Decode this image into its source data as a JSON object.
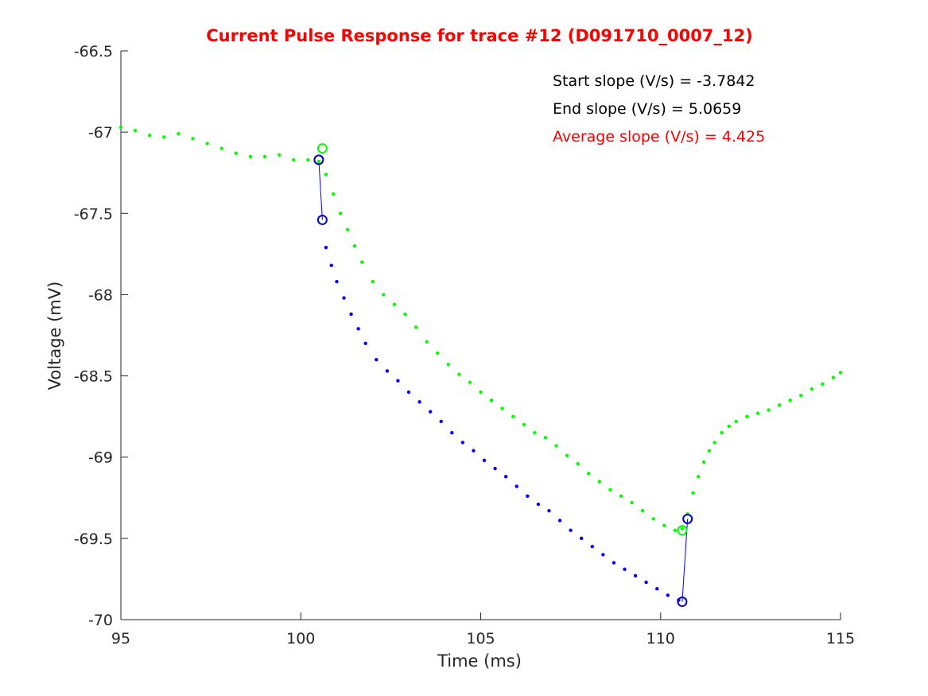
{
  "chart_data": {
    "type": "scatter",
    "title": "Current Pulse Response for trace #12 (D091710_0007_12)",
    "xlabel": "Time (ms)",
    "ylabel": "Voltage (mV)",
    "xlim": [
      95,
      115
    ],
    "ylim": [
      -70,
      -66.5
    ],
    "xticks": [
      95,
      100,
      105,
      110,
      115
    ],
    "yticks": [
      -66.5,
      -67,
      -67.5,
      -68,
      -68.5,
      -69,
      -69.5,
      -70
    ],
    "xtick_labels": [
      "95",
      "100",
      "105",
      "110",
      "115"
    ],
    "ytick_labels": [
      "-66.5",
      "-67",
      "-67.5",
      "-68",
      "-68.5",
      "-69",
      "-69.5",
      "-70"
    ],
    "grid": false,
    "annotations": [
      {
        "text": "Start slope (V/s) = -3.7842",
        "color": "#000000"
      },
      {
        "text": "End slope (V/s) = 5.0659",
        "color": "#000000"
      },
      {
        "text": "Average slope (V/s) = 4.425",
        "color": "#ff0000"
      }
    ],
    "colors": {
      "green_series": "#00ff00",
      "blue_series": "#0000ff",
      "blue_marker": "#0000cc",
      "title": "#ff0000"
    },
    "series": [
      {
        "color": "#00ff00",
        "style": "dots",
        "x": [
          95.0,
          95.4,
          95.8,
          96.2,
          96.6,
          97.0,
          97.4,
          97.8,
          98.2,
          98.6,
          99.0,
          99.4,
          99.8,
          100.2,
          100.5,
          100.7,
          100.9,
          101.1,
          101.3,
          101.5,
          101.7,
          102.0,
          102.3,
          102.6,
          102.9,
          103.2,
          103.5,
          103.8,
          104.1,
          104.4,
          104.7,
          105.0,
          105.3,
          105.6,
          105.9,
          106.2,
          106.5,
          106.8,
          107.1,
          107.4,
          107.7,
          108.0,
          108.3,
          108.6,
          108.9,
          109.2,
          109.5,
          109.8,
          110.1,
          110.4,
          110.6,
          110.75,
          110.9,
          111.05,
          111.2,
          111.35,
          111.5,
          111.7,
          111.9,
          112.1,
          112.4,
          112.7,
          113.0,
          113.3,
          113.6,
          113.9,
          114.2,
          114.5,
          114.8,
          115.0
        ],
        "y": [
          -66.97,
          -66.99,
          -67.02,
          -67.03,
          -67.01,
          -67.04,
          -67.07,
          -67.1,
          -67.13,
          -67.15,
          -67.15,
          -67.14,
          -67.17,
          -67.17,
          -67.18,
          -67.26,
          -67.38,
          -67.5,
          -67.6,
          -67.7,
          -67.8,
          -67.92,
          -68.0,
          -68.06,
          -68.12,
          -68.2,
          -68.29,
          -68.36,
          -68.43,
          -68.49,
          -68.54,
          -68.6,
          -68.65,
          -68.7,
          -68.75,
          -68.8,
          -68.85,
          -68.88,
          -68.93,
          -68.99,
          -69.04,
          -69.1,
          -69.15,
          -69.2,
          -69.24,
          -69.28,
          -69.33,
          -69.38,
          -69.42,
          -69.45,
          -69.44,
          -69.35,
          -69.22,
          -69.12,
          -69.03,
          -68.96,
          -68.91,
          -68.85,
          -68.81,
          -68.78,
          -68.75,
          -68.73,
          -68.71,
          -68.68,
          -68.65,
          -68.62,
          -68.58,
          -68.55,
          -68.51,
          -68.48
        ]
      },
      {
        "color": "#0000ff",
        "style": "dots",
        "x": [
          100.7,
          100.85,
          101.0,
          101.2,
          101.4,
          101.6,
          101.8,
          102.1,
          102.4,
          102.7,
          103.0,
          103.3,
          103.6,
          103.9,
          104.2,
          104.5,
          104.8,
          105.1,
          105.4,
          105.7,
          106.0,
          106.3,
          106.6,
          106.9,
          107.2,
          107.5,
          107.8,
          108.1,
          108.4,
          108.7,
          109.0,
          109.3,
          109.6,
          109.9,
          110.2,
          110.5
        ],
        "y": [
          -67.71,
          -67.82,
          -67.92,
          -68.02,
          -68.12,
          -68.21,
          -68.3,
          -68.4,
          -68.47,
          -68.53,
          -68.6,
          -68.66,
          -68.72,
          -68.78,
          -68.85,
          -68.91,
          -68.96,
          -69.02,
          -69.07,
          -69.12,
          -69.18,
          -69.24,
          -69.29,
          -69.33,
          -69.39,
          -69.45,
          -69.5,
          -69.55,
          -69.6,
          -69.65,
          -69.69,
          -69.73,
          -69.77,
          -69.81,
          -69.85,
          -69.88
        ]
      }
    ],
    "markers": [
      {
        "color": "#00ff00",
        "shape": "circle",
        "x": 100.6,
        "y": -67.1
      },
      {
        "color": "#0000cc",
        "shape": "circle",
        "x": 100.5,
        "y": -67.17
      },
      {
        "color": "#0000cc",
        "shape": "circle",
        "x": 100.6,
        "y": -67.54
      },
      {
        "color": "#00ff00",
        "shape": "circle",
        "x": 110.6,
        "y": -69.45
      },
      {
        "color": "#0000cc",
        "shape": "circle",
        "x": 110.75,
        "y": -69.38
      },
      {
        "color": "#0000cc",
        "shape": "circle",
        "x": 110.6,
        "y": -69.89
      }
    ],
    "segments": [
      {
        "color": "#0000ff",
        "x": [
          100.5,
          100.6
        ],
        "y": [
          -67.17,
          -67.54
        ]
      },
      {
        "color": "#0000ff",
        "x": [
          110.6,
          110.75
        ],
        "y": [
          -69.89,
          -69.38
        ]
      }
    ]
  }
}
